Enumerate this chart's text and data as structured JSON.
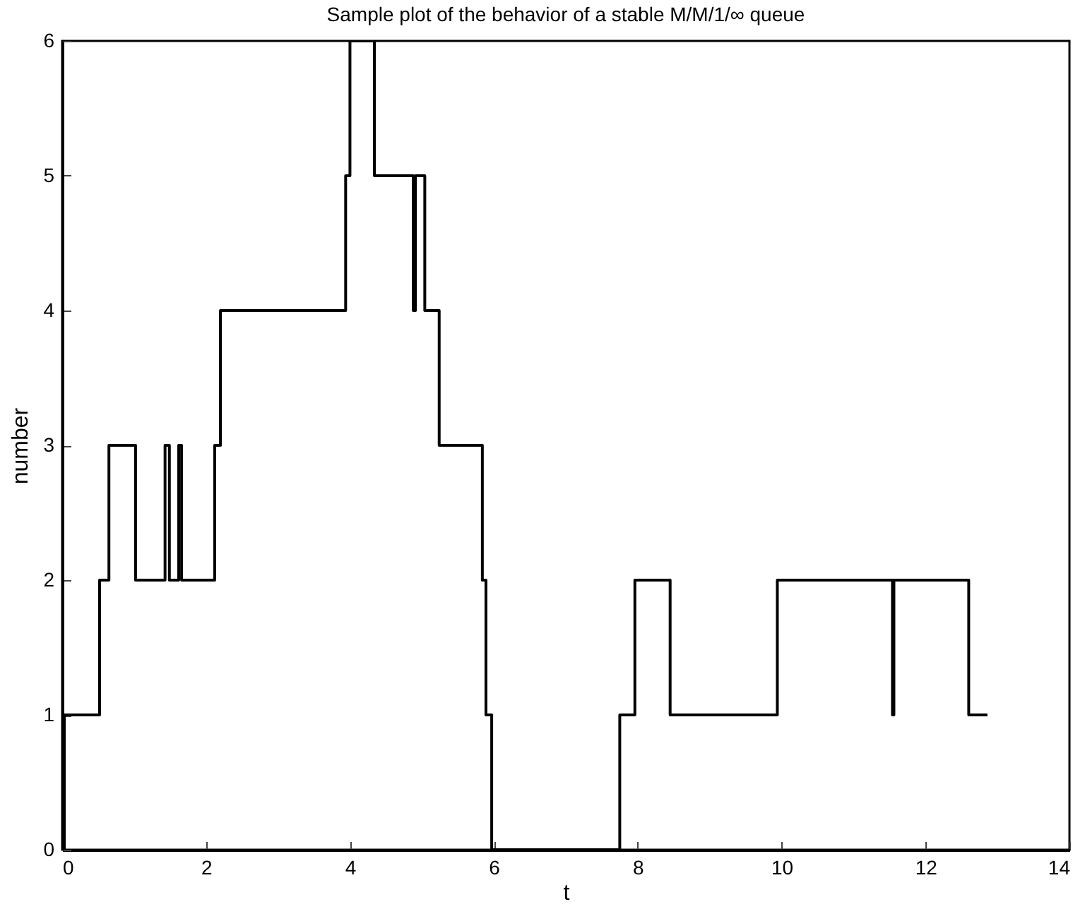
{
  "chart_data": {
    "type": "step",
    "title": "Sample plot of the behavior of a stable M/M/1/∞ queue",
    "xlabel": "t",
    "ylabel": "number",
    "x": [
      0,
      0.03,
      0.52,
      0.65,
      1.02,
      1.43,
      1.49,
      1.62,
      1.66,
      2.12,
      2.2,
      3.94,
      4.0,
      4.34,
      4.88,
      4.91,
      5.04,
      5.24,
      5.84,
      5.89,
      5.97,
      7.75,
      7.96,
      8.45,
      9.94,
      11.54,
      11.56,
      12.6,
      12.86
    ],
    "series": [
      {
        "color": "#000000",
        "values": [
          0,
          1,
          2,
          3,
          2,
          3,
          2,
          3,
          2,
          3,
          4,
          5,
          6,
          5,
          4,
          5,
          4,
          3,
          2,
          1,
          0,
          1,
          2,
          1,
          2,
          1,
          2,
          1,
          1
        ]
      }
    ],
    "xlim": [
      0,
      14
    ],
    "ylim": [
      0,
      6
    ],
    "xticks": [
      0,
      2,
      4,
      6,
      8,
      10,
      12,
      14
    ],
    "yticks": [
      0,
      1,
      2,
      3,
      4,
      5,
      6
    ],
    "grid": false
  }
}
